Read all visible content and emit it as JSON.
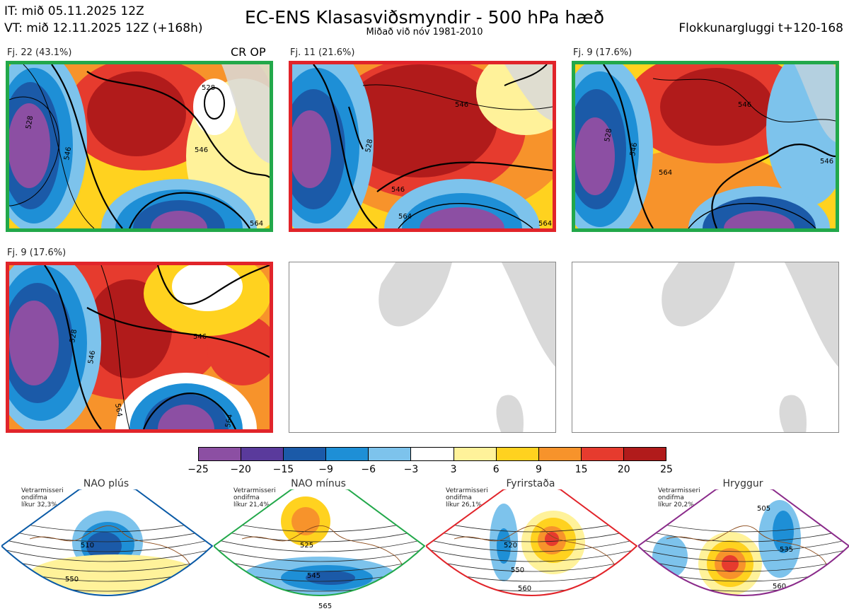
{
  "header": {
    "it": "IT: mið 05.11.2025 12Z",
    "vt": "VT: mið 12.11.2025 12Z  (+168h)",
    "title": "EC-ENS Klasasviðsmyndir - 500 hPa hæð",
    "subtitle": "Miðað við nóv 1981-2010",
    "window": "Flokkunargluggi t+120-168",
    "crop": "CR OP"
  },
  "colors": {
    "green_frame": "#22a84a",
    "red_frame": "#e1242a",
    "blue_frame": "#0a5aa6",
    "purple_frame": "#8a2a8a",
    "land": "#d9d9d9"
  },
  "chart_data": {
    "type": "heatmap",
    "title": "EC-ENS Klasasviðsmyndir - 500 hPa hæð",
    "colorbar": {
      "ticks": [
        "−25",
        "−20",
        "−15",
        "−9",
        "−6",
        "−3",
        "3",
        "6",
        "9",
        "15",
        "20",
        "25"
      ],
      "colors": [
        "#8c4fa3",
        "#5a3a9c",
        "#1b5aa8",
        "#1e8fd6",
        "#7dc3ec",
        "#ffffff",
        "#fff29a",
        "#ffd21f",
        "#f7932b",
        "#e63b2e",
        "#b11b1b"
      ]
    },
    "clusters": [
      {
        "label": "Fj. 22 (43.1%)",
        "members": 22,
        "percent": 43.1,
        "frame": "green",
        "contours": [
          "528",
          "546",
          "546",
          "528",
          "564"
        ]
      },
      {
        "label": "Fj. 11 (21.6%)",
        "members": 11,
        "percent": 21.6,
        "frame": "red",
        "contours": [
          "546",
          "528",
          "546",
          "564",
          "564"
        ]
      },
      {
        "label": "Fj. 9 (17.6%)",
        "members": 9,
        "percent": 17.6,
        "frame": "green",
        "contours": [
          "546",
          "528",
          "546",
          "564",
          "546"
        ]
      },
      {
        "label": "Fj. 9 (17.6%)",
        "members": 9,
        "percent": 17.6,
        "frame": "red",
        "contours": [
          "528",
          "546",
          "546",
          "564",
          "564"
        ]
      }
    ],
    "regimes": [
      {
        "name": "NAO plús",
        "note": "Vetrarmisseri\nondifma\nlíkur 32,3%",
        "frame": "blue",
        "dot": "#0a5aa6",
        "contours": [
          "510",
          "550"
        ]
      },
      {
        "name": "NAO mínus",
        "note": "Vetrarmisseri\nondifma\nlíkur 21,4%",
        "frame": "green",
        "dot": "#22a84a",
        "contours": [
          "525",
          "545",
          "565"
        ]
      },
      {
        "name": "Fyrirstaða",
        "note": "Vetrarmisseri\nondifma\nlíkur 26,1%",
        "frame": "red",
        "dot": "#e1242a",
        "contours": [
          "520",
          "550",
          "560"
        ]
      },
      {
        "name": "Hryggur",
        "note": "Vetrarmisseri\nondifma\nlíkur 20,2%",
        "frame": "purple",
        "dot": "#ee6ee8",
        "contours": [
          "505",
          "535",
          "560"
        ]
      }
    ]
  }
}
